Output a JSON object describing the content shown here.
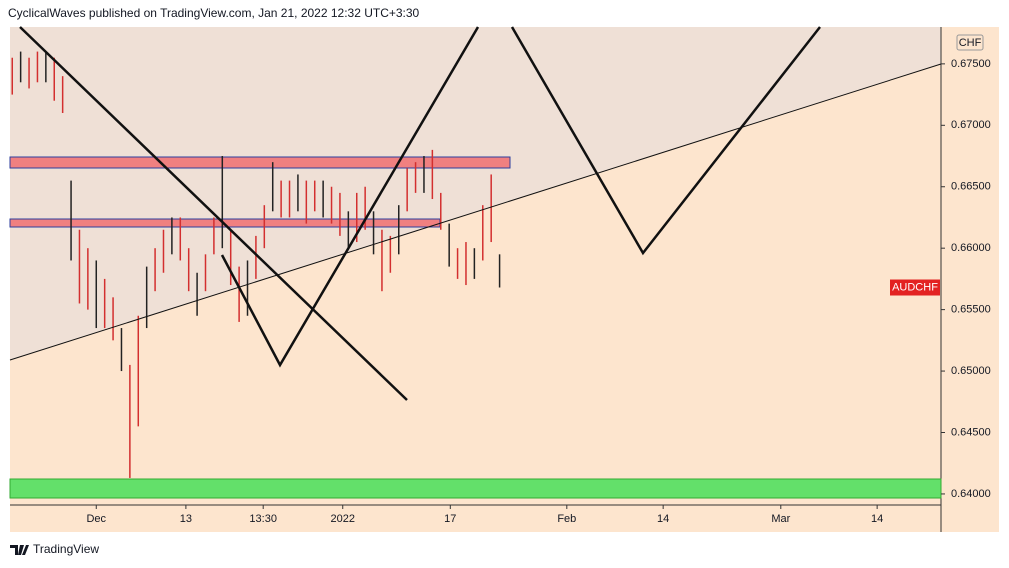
{
  "chart_data": {
    "type": "ohlc",
    "header": "CyclicalWaves published on TradingView.com, Jan 21, 2022 12:32 UTC+3:30",
    "currency_label": "CHF",
    "symbol": "AUDCHF",
    "last": 0.6568,
    "x": [
      -7.5,
      -6.75,
      -6,
      -5.25,
      -4.5,
      -3.75,
      -3,
      -2.25,
      -1.5,
      -0.75,
      0,
      0.75,
      1.5,
      2.25,
      3,
      3.75,
      4.5,
      5.25,
      6,
      6.75,
      7.5,
      8.25,
      9,
      9.75,
      10.5,
      11.25,
      12,
      12.75,
      13.5,
      14.25,
      15,
      15.75,
      16.5,
      17.25,
      18,
      18.75,
      19.5,
      20.25,
      21,
      21.75,
      22.5,
      23.25,
      24,
      24.75,
      25.5,
      26.25,
      27,
      27.75,
      28.5,
      29.25,
      30,
      30.75,
      31.5,
      32.25,
      33,
      33.75,
      34.5,
      35.25,
      36
    ],
    "series": [
      {
        "color": "#d32f2f",
        "high": [
          0.6755,
          0.676,
          0.6755,
          0.676,
          0.676,
          0.6755,
          0.674,
          0.6655,
          0.6615,
          0.66,
          0.659,
          0.6575,
          0.656,
          0.6535,
          0.6505,
          0.6545,
          0.6585,
          0.66,
          0.6615,
          0.6625,
          0.6625,
          0.66,
          0.658,
          0.6595,
          0.6625,
          0.6675,
          0.6615,
          0.6585,
          0.659,
          0.661,
          0.6635,
          0.667,
          0.6655,
          0.6655,
          0.666,
          0.6655,
          0.6655,
          0.6655,
          0.665,
          0.6645,
          0.663,
          0.6645,
          0.665,
          0.663,
          0.6615,
          0.661,
          0.6635,
          0.6665,
          0.667,
          0.6675,
          0.668,
          0.6645,
          0.662,
          0.66,
          0.6605,
          0.66,
          0.6635,
          0.666,
          0.6595
        ],
        "low": [
          0.6725,
          0.6735,
          0.673,
          0.6735,
          0.6735,
          0.672,
          0.671,
          0.659,
          0.6555,
          0.655,
          0.6535,
          0.6535,
          0.6525,
          0.65,
          0.6413,
          0.6455,
          0.6535,
          0.6565,
          0.658,
          0.6595,
          0.659,
          0.6565,
          0.6545,
          0.6565,
          0.6595,
          0.66,
          0.657,
          0.654,
          0.6545,
          0.6575,
          0.66,
          0.663,
          0.6625,
          0.6625,
          0.663,
          0.662,
          0.663,
          0.6625,
          0.662,
          0.661,
          0.66,
          0.6605,
          0.6615,
          0.6595,
          0.6565,
          0.658,
          0.6595,
          0.663,
          0.6645,
          0.6645,
          0.664,
          0.6615,
          0.6585,
          0.6575,
          0.657,
          0.6575,
          0.659,
          0.6605,
          0.6568
        ]
      }
    ],
    "xlim": [
      -7.7,
      75.4
    ],
    "ylim": [
      0.6391,
      0.678
    ],
    "xticks": [
      {
        "value": 0,
        "label": "Dec"
      },
      {
        "value": 8,
        "label": "13"
      },
      {
        "value": 14.9,
        "label": "13:30"
      },
      {
        "value": 22,
        "label": "2022"
      },
      {
        "value": 31.6,
        "label": "17"
      },
      {
        "value": 42,
        "label": "Feb"
      },
      {
        "value": 50.6,
        "label": "14"
      },
      {
        "value": 61.1,
        "label": "Mar"
      },
      {
        "value": 69.7,
        "label": "14"
      }
    ],
    "yticks": [
      {
        "value": 0.675,
        "label": "0.67500"
      },
      {
        "value": 0.67,
        "label": "0.67000"
      },
      {
        "value": 0.665,
        "label": "0.66500"
      },
      {
        "value": 0.66,
        "label": "0.66000"
      },
      {
        "value": 0.655,
        "label": "0.65500"
      },
      {
        "value": 0.65,
        "label": "0.65000"
      },
      {
        "value": 0.645,
        "label": "0.64500"
      },
      {
        "value": 0.64,
        "label": "0.64000"
      }
    ]
  },
  "footer": {
    "brand": "TradingView"
  }
}
